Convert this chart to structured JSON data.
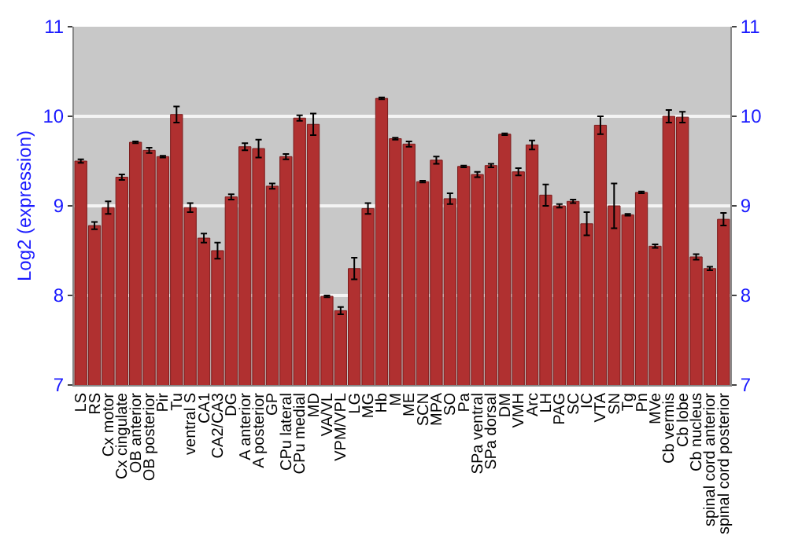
{
  "chart_data": {
    "type": "bar",
    "ylabel": "Log2 (expression)",
    "categories": [
      "LS",
      "RS",
      "Cx motor",
      "Cx cingulate",
      "OB anterior",
      "OB posterior",
      "Pir",
      "Tu",
      "ventral S",
      "CA1",
      "CA2/CA3",
      "DG",
      "A anterior",
      "A posterior",
      "GP",
      "CPu lateral",
      "CPu medial",
      "MD",
      "VA/VL",
      "VPM/VPL",
      "LG",
      "MG",
      "Hb",
      "M",
      "ME",
      "SCN",
      "MPA",
      "SO",
      "Pa",
      "SPa ventral",
      "SPa dorsal",
      "DM",
      "VMH",
      "Arc",
      "LH",
      "PAG",
      "SC",
      "IC",
      "VTA",
      "SN",
      "Tg",
      "Pn",
      "MVe",
      "Cb vermis",
      "Cb lobe",
      "Cb nucleus",
      "spinal cord anterior",
      "spinal cord posterior"
    ],
    "series": [
      {
        "color": "#b03030",
        "values": [
          9.5,
          8.78,
          8.98,
          9.32,
          9.71,
          9.62,
          9.55,
          10.02,
          8.98,
          8.64,
          8.5,
          9.1,
          9.66,
          9.64,
          9.22,
          9.55,
          9.98,
          9.91,
          7.99,
          7.83,
          8.3,
          8.97,
          10.2,
          9.75,
          9.69,
          9.27,
          9.51,
          9.08,
          9.44,
          9.35,
          9.45,
          9.8,
          9.38,
          9.68,
          9.12,
          9.0,
          9.05,
          8.8,
          9.9,
          9.0,
          8.9,
          9.15,
          8.55,
          10.0,
          9.99,
          8.43,
          8.3,
          8.85
        ],
        "errors": [
          0.02,
          0.04,
          0.07,
          0.03,
          0.01,
          0.03,
          0.01,
          0.09,
          0.05,
          0.05,
          0.09,
          0.03,
          0.04,
          0.1,
          0.03,
          0.03,
          0.03,
          0.12,
          0.01,
          0.04,
          0.12,
          0.06,
          0.01,
          0.01,
          0.03,
          0.01,
          0.04,
          0.06,
          0.01,
          0.03,
          0.02,
          0.01,
          0.04,
          0.05,
          0.12,
          0.02,
          0.02,
          0.13,
          0.1,
          0.25,
          0.01,
          0.01,
          0.02,
          0.07,
          0.06,
          0.03,
          0.02,
          0.07
        ]
      }
    ],
    "ylim": [
      7,
      11
    ],
    "yticks": [
      7,
      8,
      9,
      10,
      11
    ],
    "y2lim": [
      7,
      11
    ],
    "y2ticks": [
      7,
      8,
      9,
      10,
      11
    ],
    "grid": "y",
    "legend": false
  }
}
